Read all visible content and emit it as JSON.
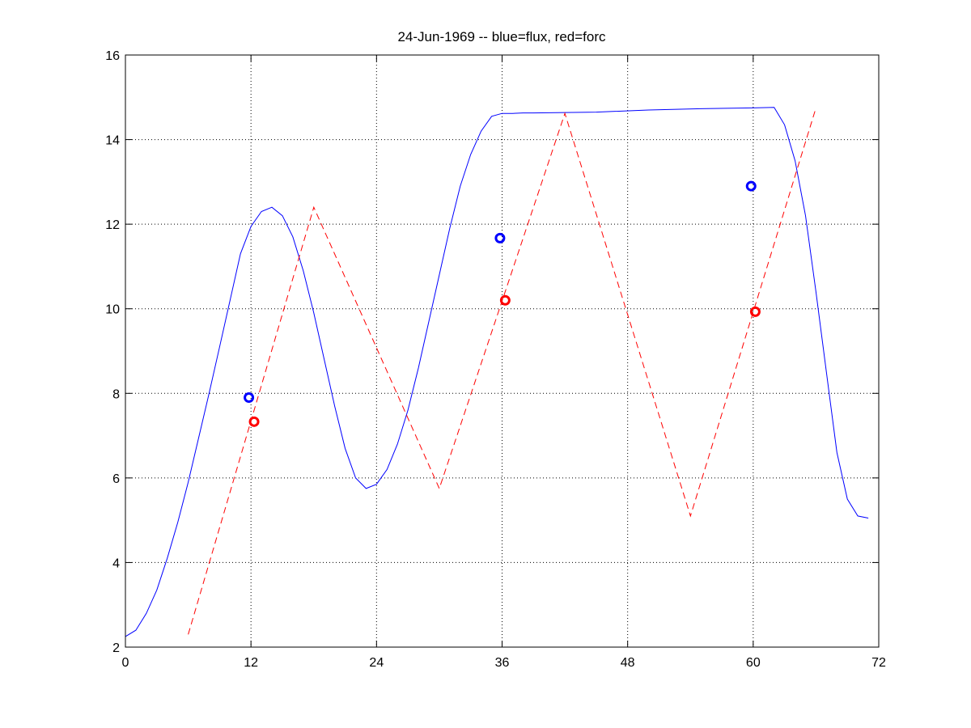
{
  "chart_data": {
    "type": "line",
    "title": "24-Jun-1969 -- blue=flux, red=forc",
    "xlabel": "",
    "ylabel": "",
    "xlim": [
      0,
      72
    ],
    "ylim": [
      2,
      16
    ],
    "xticks": [
      0,
      12,
      24,
      36,
      48,
      60,
      72
    ],
    "yticks": [
      2,
      4,
      6,
      8,
      10,
      12,
      14,
      16
    ],
    "xtick_labels": [
      "0",
      "12",
      "24",
      "36",
      "48",
      "60",
      "72"
    ],
    "ytick_labels": [
      "2",
      "4",
      "6",
      "8",
      "10",
      "12",
      "14",
      "16"
    ],
    "grid": true,
    "series": [
      {
        "style": "solid",
        "color": "#0000ff",
        "x": [
          0,
          1,
          2,
          3,
          4,
          5,
          6,
          7,
          8,
          9,
          10,
          11,
          12,
          13,
          14,
          15,
          16,
          17,
          18,
          19,
          20,
          21,
          22,
          23,
          24,
          25,
          26,
          27,
          28,
          29,
          30,
          31,
          32,
          33,
          34,
          35,
          36,
          37,
          38,
          39,
          45,
          50,
          55,
          60,
          62,
          63,
          64,
          65,
          66,
          67,
          68,
          69,
          70,
          71
        ],
        "y": [
          2.25,
          2.4,
          2.8,
          3.35,
          4.1,
          4.95,
          5.9,
          6.95,
          8.0,
          9.1,
          10.2,
          11.3,
          11.95,
          12.3,
          12.4,
          12.2,
          11.7,
          10.9,
          9.9,
          8.8,
          7.7,
          6.7,
          6.0,
          5.75,
          5.85,
          6.2,
          6.8,
          7.6,
          8.6,
          9.7,
          10.8,
          11.9,
          12.9,
          13.65,
          14.2,
          14.55,
          14.62,
          14.62,
          14.63,
          14.63,
          14.65,
          14.7,
          14.73,
          14.75,
          14.76,
          14.35,
          13.5,
          12.2,
          10.4,
          8.5,
          6.6,
          5.5,
          5.1,
          5.05
        ]
      },
      {
        "style": "dashed",
        "color": "#ff0000",
        "x": [
          6,
          18,
          30,
          42,
          54,
          66
        ],
        "y": [
          2.3,
          12.4,
          5.75,
          14.62,
          5.1,
          14.75
        ]
      }
    ],
    "markers": [
      {
        "color": "#0000ff",
        "x": 11.8,
        "y": 7.9
      },
      {
        "color": "#ff0000",
        "x": 12.3,
        "y": 7.33
      },
      {
        "color": "#0000ff",
        "x": 35.8,
        "y": 11.67
      },
      {
        "color": "#ff0000",
        "x": 36.3,
        "y": 10.2
      },
      {
        "color": "#0000ff",
        "x": 59.8,
        "y": 12.9
      },
      {
        "color": "#ff0000",
        "x": 60.2,
        "y": 9.93
      }
    ]
  }
}
